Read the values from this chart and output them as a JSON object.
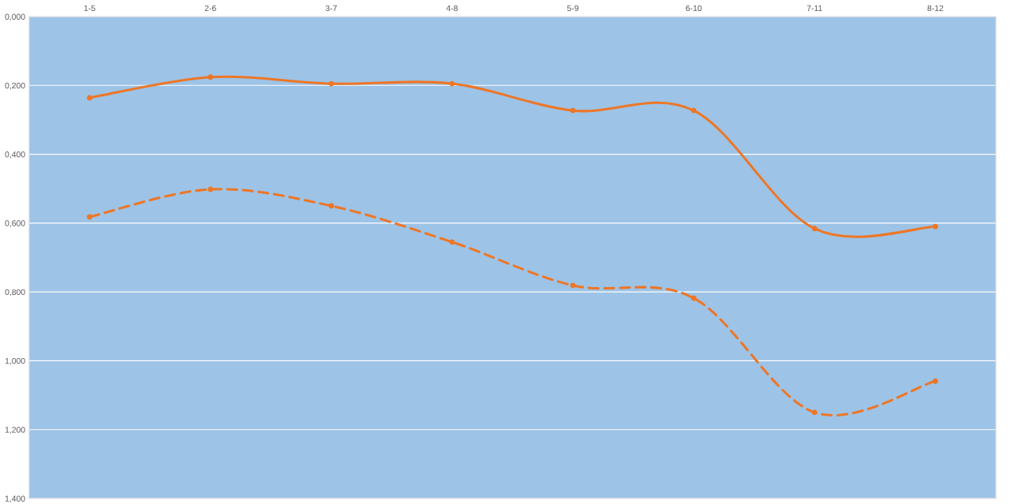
{
  "chart_data": {
    "type": "line",
    "categories": [
      "1-5",
      "2-6",
      "3-7",
      "4-8",
      "5-9",
      "6-10",
      "7-11",
      "8-12"
    ],
    "series": [
      {
        "color": "#ee7626",
        "line_style": "solid",
        "values": [
          0.236,
          0.176,
          0.195,
          0.195,
          0.273,
          0.273,
          0.616,
          0.61
        ]
      },
      {
        "color": "#ee7626",
        "line_style": "dashed",
        "values": [
          0.582,
          0.502,
          0.55,
          0.655,
          0.781,
          0.818,
          1.15,
          1.059
        ]
      }
    ],
    "ylim": [
      1.4,
      0
    ],
    "yticks": [
      {
        "value": 0,
        "label": "0,000"
      },
      {
        "value": 0.2,
        "label": "0,200"
      },
      {
        "value": 0.4,
        "label": "0,400"
      },
      {
        "value": 0.6,
        "label": "0,600"
      },
      {
        "value": 0.8,
        "label": "0,800"
      },
      {
        "value": 1.0,
        "label": "1,000"
      },
      {
        "value": 1.2,
        "label": "1,200"
      },
      {
        "value": 1.4,
        "label": "1,400"
      }
    ],
    "grid": "y",
    "marker": "circle"
  }
}
